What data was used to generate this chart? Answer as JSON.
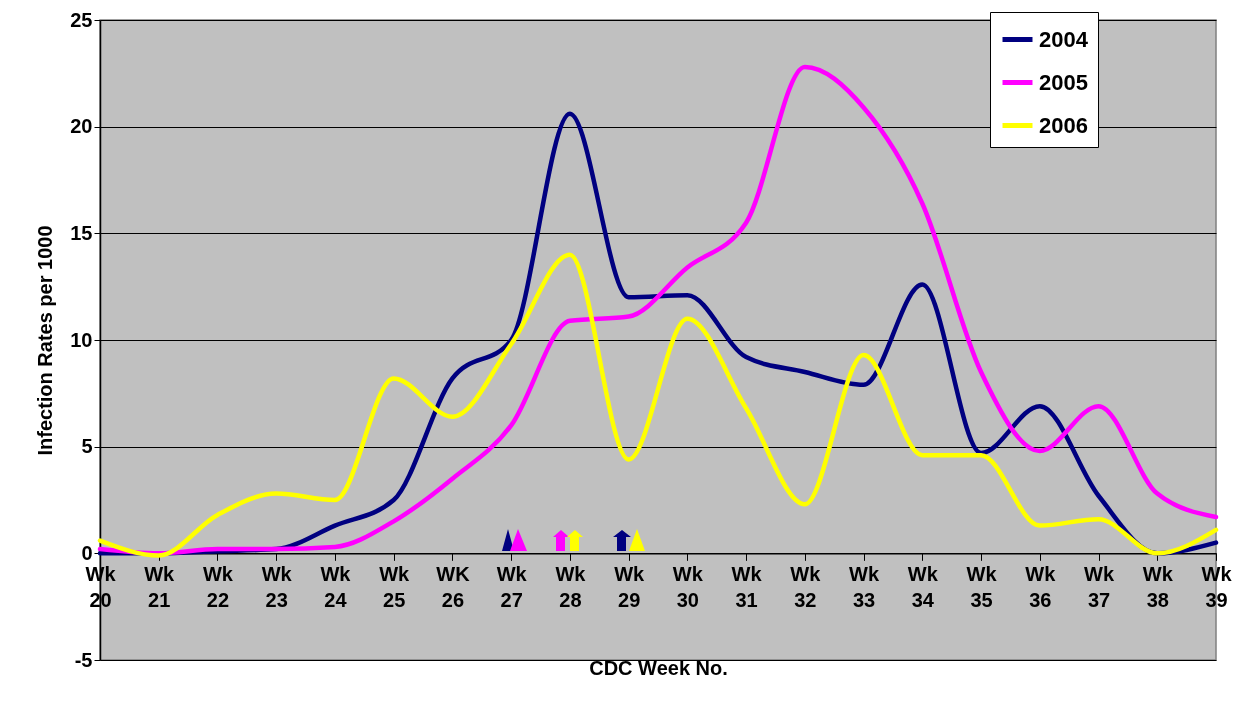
{
  "chart_data": {
    "type": "line",
    "xlabel": "CDC Week No.",
    "ylabel": "Infection Rates per 1000",
    "categories": [
      "Wk 20",
      "Wk 21",
      "Wk 22",
      "Wk 23",
      "Wk 24",
      "Wk 25",
      "WK 26",
      "Wk 27",
      "Wk 28",
      "Wk 29",
      "Wk 30",
      "Wk 31",
      "Wk 32",
      "Wk 33",
      "Wk 34",
      "Wk 35",
      "Wk 36",
      "Wk 37",
      "Wk 38",
      "Wk 39"
    ],
    "ylim": [
      -5,
      25
    ],
    "yticks": [
      -5,
      0,
      5,
      10,
      15,
      20,
      25
    ],
    "grid": "y",
    "legend": "top right",
    "marker": "none",
    "line_style": "solid",
    "series": [
      {
        "name": "2004",
        "color": "#000080",
        "values": [
          0,
          0,
          0.1,
          0.2,
          1.3,
          2.5,
          8.2,
          10,
          20.6,
          12,
          12.1,
          9.2,
          8.5,
          7.9,
          12.6,
          4.7,
          6.9,
          2.7,
          0,
          0.5
        ]
      },
      {
        "name": "2005",
        "color": "#ff00ff",
        "values": [
          0.2,
          0,
          0.2,
          0.2,
          0.3,
          1.5,
          3.5,
          6,
          10.9,
          11.1,
          13.4,
          15.5,
          22.8,
          20.9,
          16.4,
          8.5,
          4.8,
          6.9,
          2.8,
          1.7
        ]
      },
      {
        "name": "2006",
        "color": "#ffff00",
        "values": [
          0.6,
          -0.1,
          1.8,
          2.8,
          2.5,
          8.2,
          6.4,
          9.8,
          14,
          4.4,
          11,
          6.8,
          2.3,
          9.3,
          4.6,
          4.6,
          1.3,
          1.6,
          0,
          1.1
        ]
      }
    ]
  }
}
